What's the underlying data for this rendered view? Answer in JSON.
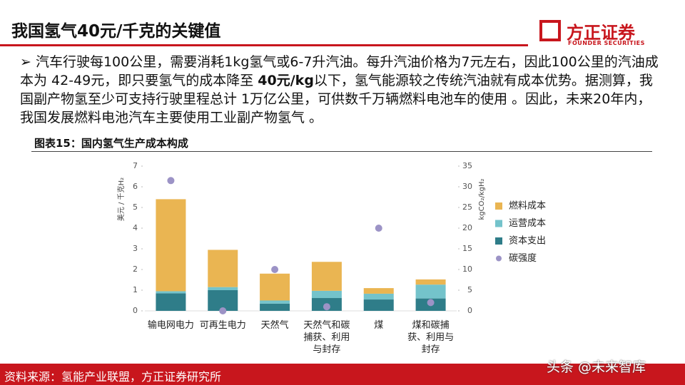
{
  "header": {
    "title": "我国氢气40元/千克的关键值",
    "logo": "方正证券",
    "logo_en": "FOUNDER SECURITIES"
  },
  "body": [
    "➢ 汽车行驶每100公里，需要消耗1kg氢气或6-7升汽油。每升汽油价格为7元左右，因此100公里的汽油成本为 42-49元，即只要氢气的成本降至 ",
    "40元/kg",
    "以下，氢气能源较之传统汽油就有成本优势。据测算，我国副产物氢至少可支持行驶里程总计 1万亿公里，可供数千万辆燃料电池车的使用 。因此，未来20年内，我国发展燃料电池汽车主要使用工业副产物氢气 。"
  ],
  "figure_label": "图表15：国内氢气生产成本构成",
  "source": "资料来源：氢能产业联盟，方正证券研究所",
  "watermark": "头条 @未来智库",
  "chart_data": {
    "type": "bar",
    "stacked": true,
    "ylabel": "美元 / 千克H₂",
    "y2label": "kgCO₂/kgH₂",
    "categories": [
      "输电网电力",
      "可再生电力",
      "天然气",
      "天然气和碳捕获、利用与封存",
      "煤",
      "煤和碳捕获、利用与封存"
    ],
    "series": [
      {
        "name": "资本支出",
        "color": "#2f7d89",
        "values": [
          0.85,
          1.0,
          0.35,
          0.62,
          0.55,
          0.6
        ]
      },
      {
        "name": "运营成本",
        "color": "#74c3cb",
        "values": [
          0.1,
          0.15,
          0.15,
          0.35,
          0.28,
          0.67
        ]
      },
      {
        "name": "燃料成本",
        "color": "#eab552",
        "values": [
          4.45,
          1.8,
          1.3,
          1.4,
          0.27,
          0.25
        ]
      },
      {
        "name": "碳强度",
        "color": "#9c93c6",
        "type": "scatter",
        "axis": "y2",
        "values": [
          31.5,
          0,
          10,
          1,
          20,
          2
        ]
      }
    ],
    "legend_order": [
      2,
      1,
      0,
      3
    ],
    "ylim": [
      0,
      7
    ],
    "yticks": [
      0,
      1,
      2,
      3,
      4,
      5,
      6,
      7
    ],
    "y2lim": [
      0,
      35
    ],
    "y2ticks": [
      0,
      5,
      10,
      15,
      20,
      25,
      30,
      35
    ]
  }
}
